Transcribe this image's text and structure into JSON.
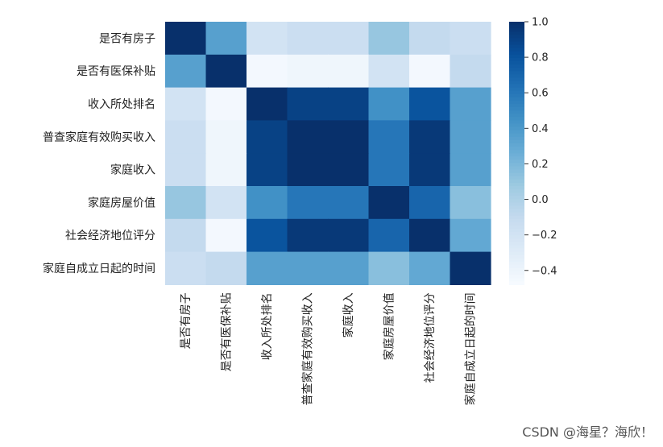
{
  "chart_data": {
    "type": "heatmap",
    "labels": [
      "是否有房子",
      "是否有医保补贴",
      "收入所处排名",
      "普查家庭有效购买收入",
      "家庭收入",
      "家庭房屋价值",
      "社会经济地位评分",
      "家庭自成立日起的时间"
    ],
    "matrix": [
      [
        1.0,
        0.35,
        -0.2,
        -0.15,
        -0.15,
        0.1,
        -0.1,
        -0.15
      ],
      [
        0.35,
        1.0,
        -0.45,
        -0.42,
        -0.42,
        -0.2,
        -0.45,
        -0.1
      ],
      [
        -0.2,
        -0.45,
        1.0,
        0.9,
        0.9,
        0.45,
        0.8,
        0.35
      ],
      [
        -0.15,
        -0.42,
        0.9,
        1.0,
        1.0,
        0.6,
        0.95,
        0.35
      ],
      [
        -0.15,
        -0.42,
        0.9,
        1.0,
        1.0,
        0.6,
        0.95,
        0.35
      ],
      [
        0.1,
        -0.2,
        0.45,
        0.6,
        0.6,
        1.0,
        0.7,
        0.15
      ],
      [
        -0.1,
        -0.45,
        0.8,
        0.95,
        0.95,
        0.7,
        1.0,
        0.3
      ],
      [
        -0.15,
        -0.1,
        0.35,
        0.35,
        0.35,
        0.15,
        0.3,
        1.0
      ]
    ],
    "colorbar": {
      "range": [
        -0.48,
        1.0
      ],
      "ticks": [
        1.0,
        0.8,
        0.6,
        0.4,
        0.2,
        0.0,
        -0.2,
        -0.4
      ],
      "tick_labels": [
        "1.0",
        "0.8",
        "0.6",
        "0.4",
        "0.2",
        "0.0",
        "−0.2",
        "−0.4"
      ],
      "colormap": "Blues"
    }
  },
  "watermark": "CSDN @海星？海欣！"
}
